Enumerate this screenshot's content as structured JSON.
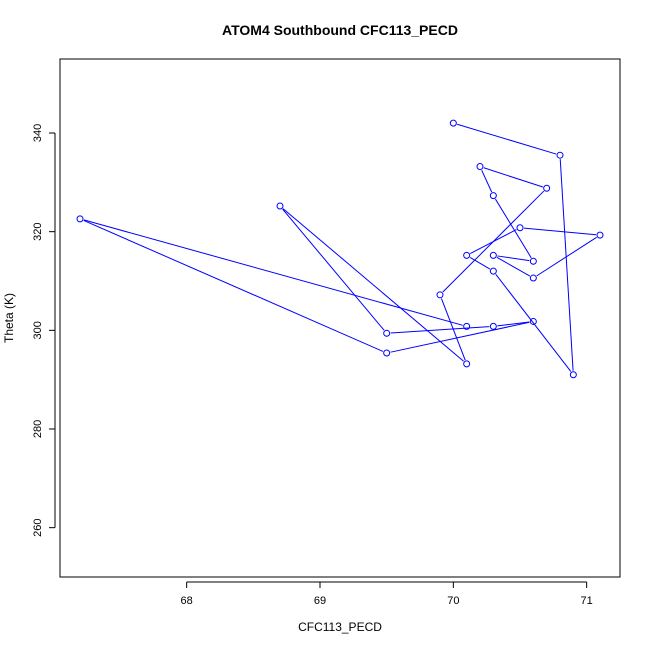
{
  "chart_data": {
    "type": "line",
    "title": "ATOM4 Southbound CFC113_PECD",
    "xlabel": "CFC113_PECD",
    "ylabel": "Theta (K)",
    "xlim": [
      67.05,
      71.25
    ],
    "ylim": [
      250,
      355
    ],
    "xticks": [
      "68",
      "69",
      "70",
      "71"
    ],
    "yticks": [
      "260",
      "280",
      "300",
      "320",
      "340"
    ],
    "grid": false,
    "markers": "open-circle",
    "series": [
      {
        "color": "#0000ff",
        "x": [
          70.0,
          70.8,
          70.9,
          70.3,
          70.1,
          70.5,
          71.1,
          70.6,
          70.3,
          70.6,
          70.3,
          70.2,
          70.7,
          69.9,
          70.1,
          68.7,
          69.5,
          70.3,
          70.6,
          69.5,
          67.2,
          70.1
        ],
        "y": [
          342,
          335.5,
          291,
          312,
          315.2,
          320.8,
          319.3,
          310.6,
          315.2,
          314,
          327.3,
          333.2,
          328.8,
          307.2,
          293.2,
          325.2,
          299.4,
          300.8,
          301.8,
          295.4,
          322.6,
          300.8
        ]
      }
    ]
  }
}
